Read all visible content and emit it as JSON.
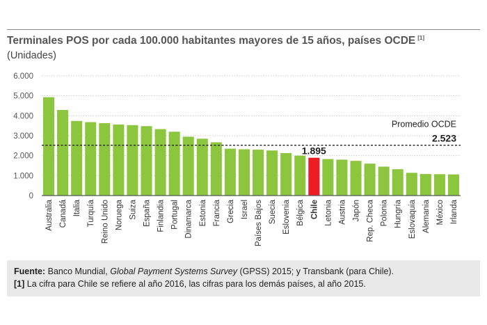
{
  "title": "Terminales POS por cada 100.000 habitantes mayores de 15 años, países OCDE",
  "title_ref": "[1]",
  "subtitle": "(Unidades)",
  "chart_data": {
    "type": "bar",
    "categories": [
      "Australia",
      "Canadá",
      "Italia",
      "Turquía",
      "Reino Unido",
      "Noruega",
      "Suiza",
      "España",
      "Finlandia",
      "Portugal",
      "Dinamarca",
      "Estonia",
      "Francia",
      "Grecia",
      "Israel",
      "Países Bajos",
      "Suecia",
      "Eslovenia",
      "Bélgica",
      "Chile",
      "Letonia",
      "Austria",
      "Japón",
      "Rep. Checa",
      "Polonia",
      "Hungría",
      "Eslovaquia",
      "Alemania",
      "México",
      "Irlanda"
    ],
    "values": [
      4930,
      4290,
      3740,
      3680,
      3630,
      3560,
      3530,
      3480,
      3330,
      3200,
      2950,
      2850,
      2670,
      2350,
      2320,
      2300,
      2260,
      2130,
      2000,
      1895,
      1830,
      1800,
      1740,
      1600,
      1450,
      1320,
      1140,
      1080,
      1070,
      1060
    ],
    "highlight_index": 19,
    "highlight_label": "1.895",
    "y_ticks": [
      "0",
      "1.000",
      "2.000",
      "3.000",
      "4.000",
      "5.000",
      "6.000"
    ],
    "ylim": [
      0,
      6000
    ],
    "reference_line": {
      "label": "Promedio OCDE",
      "value_label": "2.523",
      "value": 2523
    },
    "colors": {
      "bar": "#8cc63e",
      "highlight": "#ee1c25",
      "grid": "#c8c8c8",
      "axis": "#555555",
      "reference": "#222222"
    }
  },
  "footer": {
    "source_label": "Fuente:",
    "source_text_1": " Banco Mundial, ",
    "source_italic": "Global Payment Systems Survey",
    "source_text_2": " (GPSS) 2015; y Transbank (para Chile).",
    "note_ref": "[1]",
    "note_text": " La cifra para Chile se refiere al año 2016, las cifras para los demás países, al año 2015."
  }
}
